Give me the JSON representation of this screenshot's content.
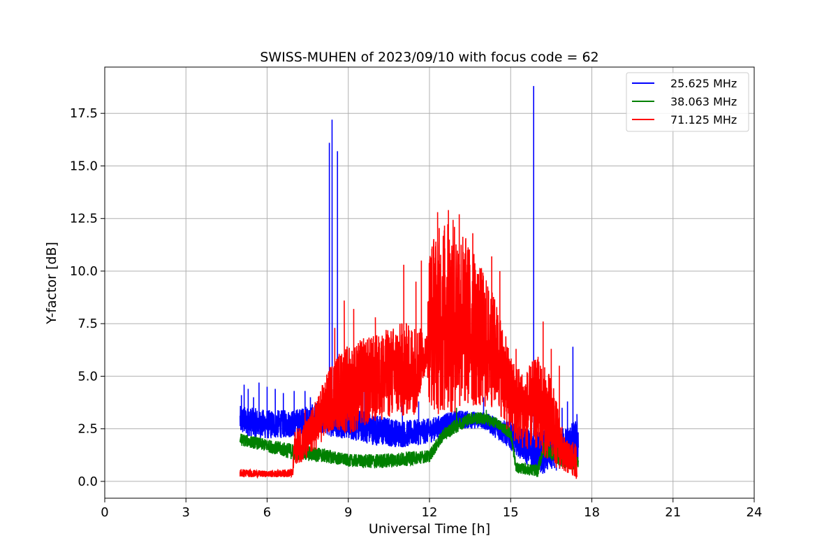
{
  "chart_data": {
    "type": "line",
    "title": "SWISS-MUHEN of 2023/09/10 with focus code = 62",
    "xlabel": "Universal Time [h]",
    "ylabel": "Y-factor [dB]",
    "xlim": [
      0,
      24
    ],
    "ylim": [
      -0.8,
      19.7
    ],
    "xticks": [
      0,
      3,
      6,
      9,
      12,
      15,
      18,
      21,
      24
    ],
    "xtick_labels": [
      "0",
      "3",
      "6",
      "9",
      "12",
      "15",
      "18",
      "21",
      "24"
    ],
    "yticks": [
      0.0,
      2.5,
      5.0,
      7.5,
      10.0,
      12.5,
      15.0,
      17.5
    ],
    "ytick_labels": [
      "0.0",
      "2.5",
      "5.0",
      "7.5",
      "10.0",
      "12.5",
      "15.0",
      "17.5"
    ],
    "grid": true,
    "legend_position": "top-right",
    "series": [
      {
        "name": "25.625 MHz",
        "color": "#0000ff",
        "profile": [
          [
            5.0,
            2.2,
            3.6
          ],
          [
            6.0,
            2.0,
            3.4
          ],
          [
            7.0,
            2.1,
            3.4
          ],
          [
            8.0,
            2.2,
            3.8
          ],
          [
            9.0,
            2.0,
            3.6
          ],
          [
            10.0,
            1.7,
            3.2
          ],
          [
            11.0,
            1.6,
            2.9
          ],
          [
            12.0,
            1.8,
            3.0
          ],
          [
            13.0,
            2.5,
            3.4
          ],
          [
            14.0,
            2.5,
            3.3
          ],
          [
            15.0,
            1.5,
            2.8
          ],
          [
            16.0,
            0.3,
            2.4
          ],
          [
            17.0,
            0.6,
            2.6
          ],
          [
            17.5,
            0.8,
            3.0
          ]
        ],
        "spikes": [
          [
            5.05,
            4.1
          ],
          [
            5.15,
            4.6
          ],
          [
            5.3,
            4.4
          ],
          [
            5.5,
            4.0
          ],
          [
            5.7,
            4.7
          ],
          [
            6.0,
            4.5
          ],
          [
            6.3,
            4.4
          ],
          [
            6.6,
            4.2
          ],
          [
            7.0,
            4.3
          ],
          [
            7.4,
            4.3
          ],
          [
            7.6,
            4.0
          ],
          [
            8.05,
            4.5
          ],
          [
            8.3,
            16.1
          ],
          [
            8.4,
            17.2
          ],
          [
            8.6,
            15.7
          ],
          [
            8.9,
            4.1
          ],
          [
            9.6,
            4.3
          ],
          [
            11.0,
            3.9
          ],
          [
            11.6,
            3.8
          ],
          [
            14.0,
            4.0
          ],
          [
            15.0,
            5.3
          ],
          [
            15.85,
            18.8
          ],
          [
            16.4,
            3.6
          ],
          [
            16.9,
            3.5
          ],
          [
            17.1,
            3.8
          ],
          [
            17.3,
            6.4
          ],
          [
            17.45,
            3.2
          ]
        ]
      },
      {
        "name": "38.063 MHz",
        "color": "#008000",
        "profile": [
          [
            5.0,
            1.7,
            2.3
          ],
          [
            6.0,
            1.4,
            2.0
          ],
          [
            7.0,
            1.0,
            1.8
          ],
          [
            8.0,
            0.9,
            1.6
          ],
          [
            9.0,
            0.7,
            1.3
          ],
          [
            10.0,
            0.6,
            1.3
          ],
          [
            11.0,
            0.7,
            1.4
          ],
          [
            12.0,
            0.9,
            1.5
          ],
          [
            12.5,
            1.9,
            2.5
          ],
          [
            13.0,
            2.3,
            3.0
          ],
          [
            13.5,
            2.7,
            3.3
          ],
          [
            14.0,
            2.7,
            3.3
          ],
          [
            14.5,
            2.5,
            3.0
          ],
          [
            15.0,
            2.0,
            2.6
          ],
          [
            15.2,
            0.4,
            0.9
          ],
          [
            16.0,
            0.2,
            0.8
          ],
          [
            16.2,
            1.2,
            1.9
          ],
          [
            17.0,
            0.6,
            1.5
          ],
          [
            17.5,
            0.5,
            1.2
          ]
        ],
        "spikes": [
          [
            13.0,
            3.5
          ],
          [
            14.1,
            3.4
          ]
        ]
      },
      {
        "name": "71.125 MHz",
        "color": "#ff0000",
        "profile": [
          [
            5.0,
            0.2,
            0.6
          ],
          [
            6.0,
            0.2,
            0.5
          ],
          [
            6.95,
            0.2,
            0.6
          ],
          [
            7.0,
            0.8,
            2.4
          ],
          [
            7.5,
            1.0,
            3.0
          ],
          [
            8.0,
            1.8,
            4.5
          ],
          [
            8.5,
            2.5,
            6.0
          ],
          [
            9.0,
            2.2,
            6.5
          ],
          [
            9.5,
            2.5,
            6.8
          ],
          [
            10.0,
            2.8,
            7.0
          ],
          [
            10.5,
            3.0,
            7.3
          ],
          [
            11.0,
            3.0,
            7.6
          ],
          [
            11.5,
            3.2,
            7.5
          ],
          [
            11.9,
            5.5,
            7.0
          ],
          [
            12.0,
            3.5,
            11.5
          ],
          [
            12.5,
            3.0,
            12.4
          ],
          [
            13.0,
            3.2,
            12.5
          ],
          [
            13.5,
            3.5,
            11.3
          ],
          [
            14.0,
            3.4,
            10.0
          ],
          [
            14.5,
            3.5,
            8.5
          ],
          [
            15.0,
            2.0,
            6.0
          ],
          [
            15.5,
            1.5,
            5.2
          ],
          [
            16.0,
            1.5,
            6.0
          ],
          [
            16.5,
            0.8,
            5.0
          ],
          [
            17.0,
            0.4,
            2.0
          ],
          [
            17.45,
            0.1,
            1.8
          ]
        ],
        "spikes": [
          [
            7.4,
            3.4
          ],
          [
            8.5,
            7.3
          ],
          [
            8.85,
            8.6
          ],
          [
            9.2,
            8.2
          ],
          [
            10.0,
            7.8
          ],
          [
            11.05,
            10.3
          ],
          [
            11.5,
            9.5
          ],
          [
            11.7,
            10.5
          ],
          [
            12.3,
            12.8
          ],
          [
            12.7,
            12.9
          ],
          [
            13.1,
            12.7
          ],
          [
            13.6,
            11.8
          ],
          [
            14.3,
            10.7
          ],
          [
            14.6,
            10.0
          ],
          [
            15.2,
            6.3
          ],
          [
            15.8,
            5.7
          ],
          [
            16.2,
            7.6
          ],
          [
            16.5,
            6.3
          ],
          [
            16.8,
            5.5
          ]
        ]
      }
    ]
  }
}
